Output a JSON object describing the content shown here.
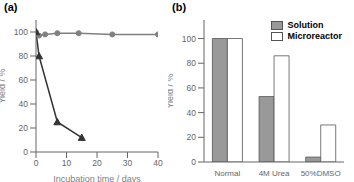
{
  "chart_data": [
    {
      "type": "line",
      "title": "(a)",
      "xlabel": "Incubation time / days",
      "ylabel": "Yield / %",
      "series": [
        {
          "x": [
            0,
            1,
            3,
            7,
            14,
            25,
            40
          ],
          "values": [
            100,
            97,
            98,
            99,
            99,
            98,
            98
          ],
          "color": "#808080",
          "marker": "circle"
        },
        {
          "x": [
            0,
            1,
            7,
            15
          ],
          "values": [
            100,
            80,
            25,
            12
          ],
          "color": "#333333",
          "marker": "triangle"
        }
      ],
      "xlim": [
        0,
        40
      ],
      "ylim": [
        0,
        110
      ],
      "xticks": [
        0,
        10,
        20,
        30,
        40
      ],
      "yticks": [
        0,
        20,
        40,
        60,
        80,
        100
      ]
    },
    {
      "type": "bar",
      "title": "(b)",
      "ylabel": "Yield / %",
      "categories": [
        "Normal",
        "4M Urea",
        "50%DMSO"
      ],
      "series": [
        {
          "name": "Solution",
          "color": "#999999",
          "values": [
            100,
            53,
            4
          ]
        },
        {
          "name": "Microreactor",
          "color": "#ffffff",
          "values": [
            100,
            86,
            30
          ]
        }
      ],
      "ylim": [
        0,
        115
      ],
      "yticks": [
        0,
        20,
        40,
        60,
        80,
        100
      ],
      "legend": "upper right"
    }
  ]
}
